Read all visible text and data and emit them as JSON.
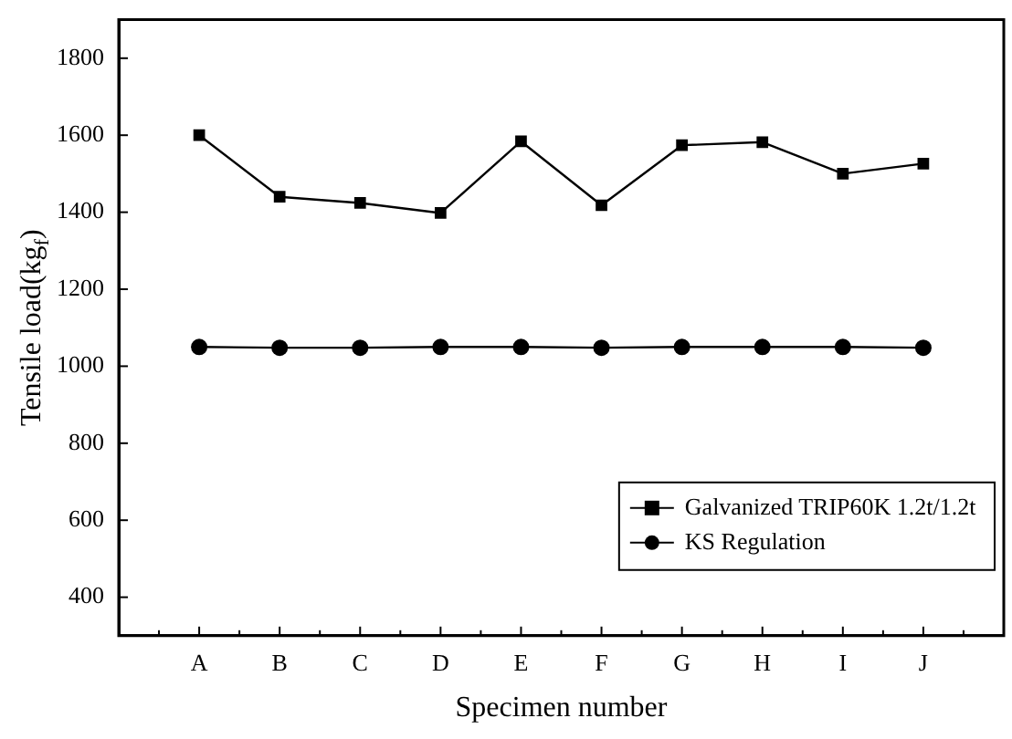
{
  "chart_data": {
    "type": "line",
    "xlabel": "Specimen number",
    "ylabel": "Tensile load(kg$_{f}$)",
    "categories": [
      "A",
      "B",
      "C",
      "D",
      "E",
      "F",
      "G",
      "H",
      "I",
      "J"
    ],
    "series": [
      {
        "name": "Galvanized TRIP60K 1.2t/1.2t",
        "color": "#000000",
        "marker": "square",
        "values": [
          1600,
          1440,
          1424,
          1398,
          1584,
          1418,
          1574,
          1582,
          1500,
          1526
        ]
      },
      {
        "name": "KS Regulation",
        "color": "#000000",
        "marker": "circle",
        "values": [
          1050,
          1048,
          1048,
          1050,
          1050,
          1048,
          1050,
          1050,
          1050,
          1048
        ]
      }
    ],
    "ylim": [
      300,
      1900
    ],
    "yticks": [
      400,
      600,
      800,
      1000,
      1200,
      1400,
      1600,
      1800
    ],
    "grid": false,
    "legend": "bottom right",
    "line_style": "solid"
  }
}
